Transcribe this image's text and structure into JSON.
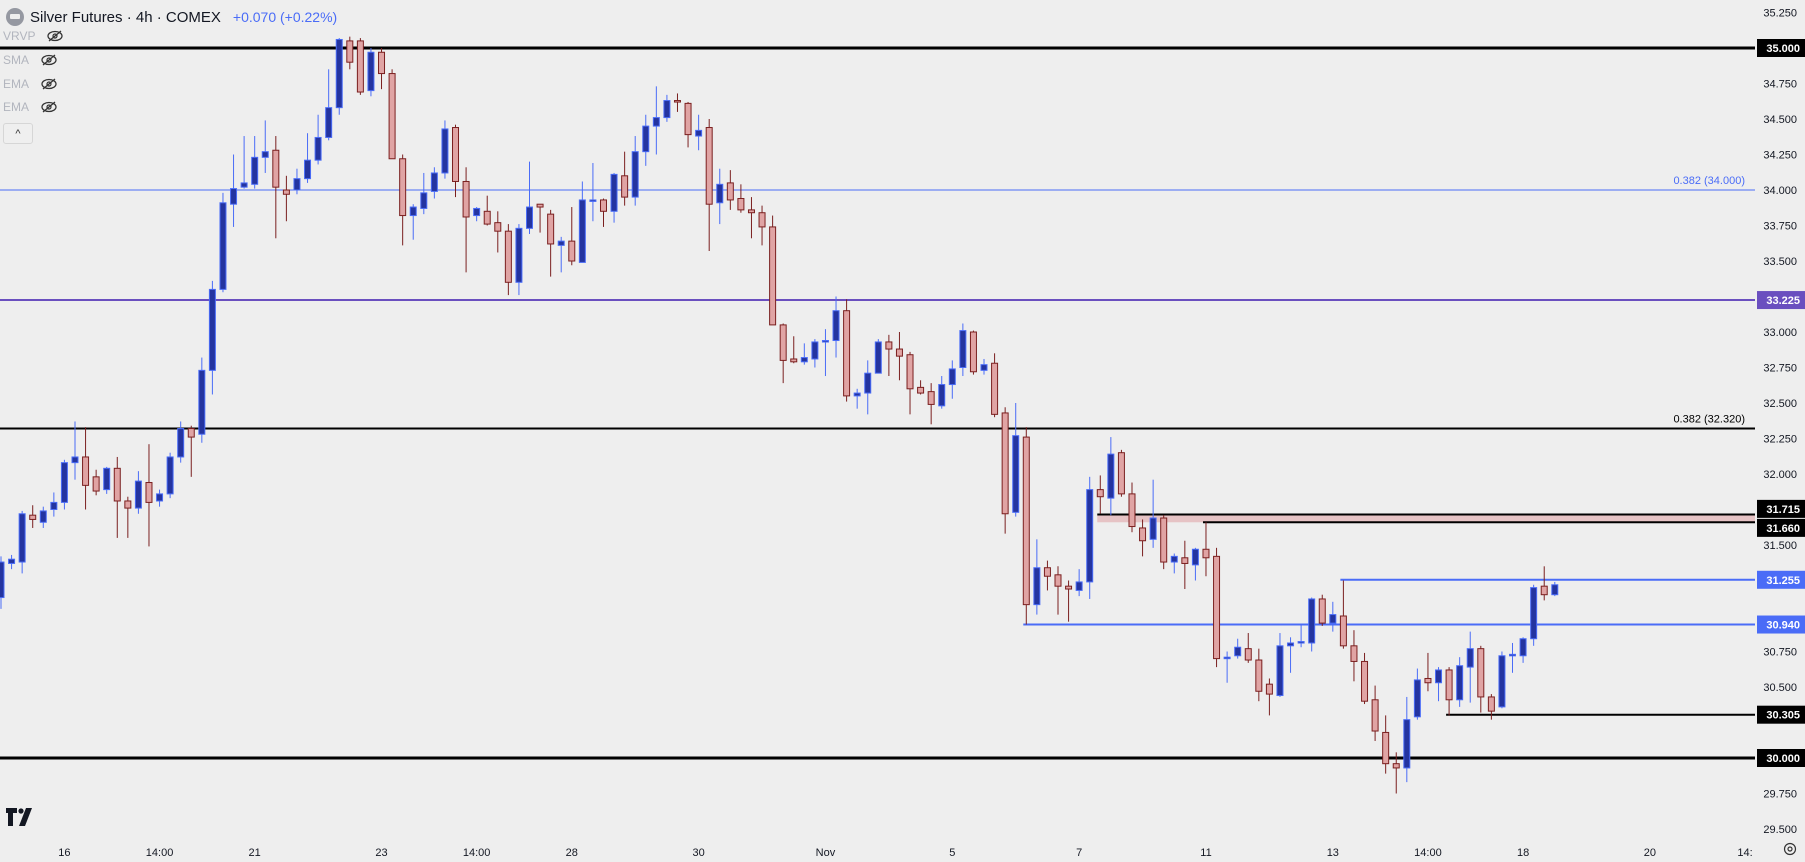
{
  "header": {
    "title": "Silver Futures · 4h · COMEX",
    "change": "+0.070 (+0.22%)"
  },
  "indicators": [
    {
      "label": "VRVP",
      "icon": "eye-off-icon"
    },
    {
      "label": "SMA",
      "icon": "eye-off-icon"
    },
    {
      "label": "EMA",
      "icon": "eye-off-icon"
    },
    {
      "label": "EMA",
      "icon": "eye-off-icon"
    }
  ],
  "collapse_label": "^",
  "colors": {
    "background": "#eeeeee",
    "up_body": "#2434a0",
    "up_border": "#4a6cf7",
    "down_body": "#e0a4a4",
    "down_border": "#7a1f1f",
    "blue_line": "#4a6cf7",
    "purple_line": "#6a4fbf",
    "black_line": "#000000",
    "zone_fill": "#e6c3c5"
  },
  "chart_data": {
    "type": "candlestick",
    "title": "Silver Futures · 4h · COMEX",
    "ylim": [
      29.34,
      35.34
    ],
    "y_ticks": [
      "35.250",
      "34.750",
      "34.500",
      "34.250",
      "34.000",
      "33.750",
      "33.500",
      "33.000",
      "32.750",
      "32.500",
      "32.250",
      "32.000",
      "31.500",
      "30.750",
      "30.500",
      "29.750",
      "29.500"
    ],
    "x_labels": [
      {
        "label": "16",
        "index": 6
      },
      {
        "label": "14:00",
        "index": 15
      },
      {
        "label": "21",
        "index": 24
      },
      {
        "label": "23",
        "index": 36
      },
      {
        "label": "14:00",
        "index": 45
      },
      {
        "label": "28",
        "index": 54
      },
      {
        "label": "30",
        "index": 66
      },
      {
        "label": "Nov",
        "index": 78
      },
      {
        "label": "5",
        "index": 90
      },
      {
        "label": "7",
        "index": 102
      },
      {
        "label": "11",
        "index": 114
      },
      {
        "label": "13",
        "index": 126
      },
      {
        "label": "14:00",
        "index": 135
      },
      {
        "label": "18",
        "index": 144
      },
      {
        "label": "20",
        "index": 156
      },
      {
        "label": "14:",
        "index": 165
      }
    ],
    "candles_ohlc": [
      [
        31.13,
        31.42,
        31.05,
        31.38
      ],
      [
        31.37,
        31.43,
        31.33,
        31.4
      ],
      [
        31.38,
        31.74,
        31.3,
        31.72
      ],
      [
        31.71,
        31.78,
        31.62,
        31.68
      ],
      [
        31.66,
        31.77,
        31.62,
        31.74
      ],
      [
        31.75,
        31.87,
        31.7,
        31.8
      ],
      [
        31.8,
        32.1,
        31.75,
        32.08
      ],
      [
        32.08,
        32.37,
        31.96,
        32.12
      ],
      [
        32.12,
        32.33,
        31.75,
        31.92
      ],
      [
        31.98,
        32.03,
        31.85,
        31.88
      ],
      [
        31.89,
        32.05,
        31.86,
        32.04
      ],
      [
        32.04,
        32.12,
        31.55,
        31.81
      ],
      [
        31.81,
        31.84,
        31.55,
        31.76
      ],
      [
        31.76,
        32.02,
        31.72,
        31.95
      ],
      [
        31.94,
        32.21,
        31.49,
        31.8
      ],
      [
        31.81,
        31.89,
        31.77,
        31.86
      ],
      [
        31.86,
        32.15,
        31.83,
        32.12
      ],
      [
        32.12,
        32.37,
        32.08,
        32.32
      ],
      [
        32.32,
        32.34,
        31.98,
        32.26
      ],
      [
        32.28,
        32.82,
        32.22,
        32.73
      ],
      [
        32.73,
        33.36,
        32.56,
        33.3
      ],
      [
        33.3,
        33.98,
        33.28,
        33.91
      ],
      [
        33.9,
        34.25,
        33.74,
        34.01
      ],
      [
        34.02,
        34.38,
        34.01,
        34.05
      ],
      [
        34.04,
        34.38,
        34.01,
        34.23
      ],
      [
        34.23,
        34.49,
        34.12,
        34.27
      ],
      [
        34.28,
        34.38,
        33.66,
        34.02
      ],
      [
        34.0,
        34.1,
        33.78,
        33.97
      ],
      [
        34.0,
        34.15,
        33.97,
        34.08
      ],
      [
        34.08,
        34.4,
        34.05,
        34.21
      ],
      [
        34.21,
        34.53,
        34.18,
        34.37
      ],
      [
        34.37,
        34.85,
        34.35,
        34.58
      ],
      [
        34.58,
        35.07,
        34.53,
        35.06
      ],
      [
        35.05,
        35.08,
        34.85,
        34.9
      ],
      [
        35.05,
        35.07,
        34.67,
        34.69
      ],
      [
        34.7,
        35.0,
        34.66,
        34.97
      ],
      [
        34.97,
        35.0,
        34.71,
        34.82
      ],
      [
        34.82,
        34.85,
        34.22,
        34.22
      ],
      [
        34.22,
        34.25,
        33.61,
        33.82
      ],
      [
        33.82,
        33.9,
        33.65,
        33.88
      ],
      [
        33.87,
        34.12,
        33.83,
        33.98
      ],
      [
        33.99,
        34.16,
        33.94,
        34.12
      ],
      [
        34.12,
        34.49,
        34.08,
        34.43
      ],
      [
        34.44,
        34.46,
        33.95,
        34.06
      ],
      [
        34.06,
        34.16,
        33.42,
        33.81
      ],
      [
        33.82,
        33.88,
        33.78,
        33.87
      ],
      [
        33.85,
        33.96,
        33.75,
        33.76
      ],
      [
        33.77,
        33.85,
        33.56,
        33.71
      ],
      [
        33.71,
        33.76,
        33.26,
        33.35
      ],
      [
        33.35,
        33.76,
        33.26,
        33.73
      ],
      [
        33.73,
        34.2,
        33.69,
        33.88
      ],
      [
        33.9,
        33.9,
        33.7,
        33.88
      ],
      [
        33.83,
        33.86,
        33.39,
        33.62
      ],
      [
        33.61,
        33.67,
        33.42,
        33.64
      ],
      [
        33.64,
        33.88,
        33.47,
        33.5
      ],
      [
        33.49,
        34.06,
        33.49,
        33.93
      ],
      [
        33.92,
        34.19,
        33.78,
        33.93
      ],
      [
        33.93,
        33.94,
        33.74,
        33.85
      ],
      [
        33.85,
        34.12,
        33.77,
        34.11
      ],
      [
        34.1,
        34.27,
        33.89,
        33.95
      ],
      [
        33.95,
        34.38,
        33.89,
        34.27
      ],
      [
        34.27,
        34.53,
        34.17,
        34.45
      ],
      [
        34.45,
        34.73,
        34.25,
        34.51
      ],
      [
        34.51,
        34.67,
        34.48,
        34.63
      ],
      [
        34.63,
        34.68,
        34.55,
        34.62
      ],
      [
        34.61,
        34.62,
        34.3,
        34.39
      ],
      [
        34.38,
        34.53,
        34.28,
        34.42
      ],
      [
        34.44,
        34.5,
        33.57,
        33.9
      ],
      [
        33.91,
        34.15,
        33.76,
        34.04
      ],
      [
        34.05,
        34.14,
        33.86,
        33.93
      ],
      [
        33.94,
        34.04,
        33.84,
        33.86
      ],
      [
        33.86,
        33.95,
        33.66,
        33.84
      ],
      [
        33.84,
        33.89,
        33.61,
        33.74
      ],
      [
        33.74,
        33.82,
        33.05,
        33.05
      ],
      [
        33.05,
        33.06,
        32.64,
        32.8
      ],
      [
        32.81,
        32.97,
        32.78,
        32.79
      ],
      [
        32.79,
        32.92,
        32.77,
        32.82
      ],
      [
        32.81,
        32.95,
        32.75,
        32.93
      ],
      [
        32.93,
        33.02,
        32.69,
        32.94
      ],
      [
        32.94,
        33.25,
        32.82,
        33.15
      ],
      [
        33.15,
        33.23,
        32.51,
        32.55
      ],
      [
        32.55,
        32.6,
        32.46,
        32.57
      ],
      [
        32.57,
        32.8,
        32.42,
        32.71
      ],
      [
        32.71,
        32.95,
        32.71,
        32.93
      ],
      [
        32.93,
        32.98,
        32.69,
        32.88
      ],
      [
        32.88,
        33.0,
        32.66,
        32.83
      ],
      [
        32.84,
        32.86,
        32.42,
        32.6
      ],
      [
        32.61,
        32.66,
        32.56,
        32.57
      ],
      [
        32.58,
        32.64,
        32.35,
        32.49
      ],
      [
        32.48,
        32.69,
        32.46,
        32.63
      ],
      [
        32.63,
        32.8,
        32.53,
        32.74
      ],
      [
        32.75,
        33.06,
        32.69,
        33.01
      ],
      [
        33.0,
        33.01,
        32.7,
        32.72
      ],
      [
        32.73,
        32.81,
        32.7,
        32.77
      ],
      [
        32.78,
        32.85,
        32.4,
        32.42
      ],
      [
        32.43,
        32.47,
        31.58,
        31.72
      ],
      [
        31.73,
        32.5,
        31.7,
        32.27
      ],
      [
        32.26,
        32.33,
        30.94,
        31.08
      ],
      [
        31.08,
        31.54,
        31.01,
        31.34
      ],
      [
        31.34,
        31.39,
        31.18,
        31.28
      ],
      [
        31.29,
        31.35,
        31.01,
        31.21
      ],
      [
        31.21,
        31.25,
        30.96,
        31.19
      ],
      [
        31.18,
        31.33,
        31.14,
        31.24
      ],
      [
        31.24,
        31.98,
        31.12,
        31.89
      ],
      [
        31.89,
        31.99,
        31.72,
        31.84
      ],
      [
        31.83,
        32.26,
        31.71,
        32.14
      ],
      [
        32.15,
        32.17,
        31.84,
        31.86
      ],
      [
        31.86,
        31.94,
        31.59,
        31.63
      ],
      [
        31.62,
        31.68,
        31.42,
        31.53
      ],
      [
        31.54,
        31.96,
        31.48,
        31.69
      ],
      [
        31.69,
        31.71,
        31.33,
        31.38
      ],
      [
        31.38,
        31.44,
        31.3,
        31.42
      ],
      [
        31.41,
        31.53,
        31.19,
        31.37
      ],
      [
        31.36,
        31.48,
        31.25,
        31.47
      ],
      [
        31.47,
        31.66,
        31.28,
        31.41
      ],
      [
        31.42,
        31.48,
        30.64,
        30.7
      ],
      [
        30.7,
        30.75,
        30.53,
        30.71
      ],
      [
        30.72,
        30.84,
        30.7,
        30.78
      ],
      [
        30.77,
        30.88,
        30.67,
        30.69
      ],
      [
        30.69,
        30.77,
        30.4,
        30.47
      ],
      [
        30.52,
        30.56,
        30.3,
        30.45
      ],
      [
        30.44,
        30.88,
        30.43,
        30.79
      ],
      [
        30.79,
        30.85,
        30.6,
        30.81
      ],
      [
        30.81,
        30.94,
        30.78,
        30.82
      ],
      [
        30.81,
        31.13,
        30.75,
        31.12
      ],
      [
        31.12,
        31.15,
        30.93,
        30.95
      ],
      [
        30.95,
        31.1,
        30.89,
        31.01
      ],
      [
        31.0,
        31.25,
        30.77,
        30.79
      ],
      [
        30.79,
        30.9,
        30.54,
        30.68
      ],
      [
        30.68,
        30.74,
        30.38,
        30.4
      ],
      [
        30.41,
        30.51,
        30.12,
        30.19
      ],
      [
        30.18,
        30.3,
        29.89,
        29.96
      ],
      [
        29.96,
        30.04,
        29.75,
        29.93
      ],
      [
        29.93,
        30.43,
        29.83,
        30.27
      ],
      [
        30.29,
        30.63,
        30.27,
        30.55
      ],
      [
        30.56,
        30.74,
        30.47,
        30.53
      ],
      [
        30.53,
        30.64,
        30.4,
        30.62
      ],
      [
        30.62,
        30.64,
        30.3,
        30.41
      ],
      [
        30.41,
        30.71,
        30.36,
        30.65
      ],
      [
        30.64,
        30.89,
        30.39,
        30.77
      ],
      [
        30.77,
        30.79,
        30.32,
        30.43
      ],
      [
        30.43,
        30.45,
        30.27,
        30.33
      ],
      [
        30.36,
        30.75,
        30.35,
        30.72
      ],
      [
        30.72,
        30.81,
        30.6,
        30.73
      ],
      [
        30.72,
        30.85,
        30.67,
        30.84
      ],
      [
        30.84,
        31.22,
        30.79,
        31.2
      ],
      [
        31.21,
        31.35,
        31.11,
        31.15
      ],
      [
        31.15,
        31.24,
        31.14,
        31.22
      ]
    ],
    "horizontal_lines": [
      {
        "price": 35.0,
        "label": "35.000",
        "style": "black-thick",
        "start_index": 0
      },
      {
        "price": 34.0,
        "label": "34.000",
        "style": "blue-thin",
        "start_index": 0,
        "annotation": "0.382 (34.000)",
        "show_axis_label": false
      },
      {
        "price": 33.225,
        "label": "33.225",
        "style": "purple",
        "start_index": 0
      },
      {
        "price": 32.32,
        "label": "32.320",
        "style": "black",
        "start_index": 0,
        "annotation": "0.382 (32.320)",
        "show_axis_label": false
      },
      {
        "price": 31.715,
        "label": "31.715",
        "style": "black",
        "start_index": 104
      },
      {
        "price": 31.66,
        "label": "31.660",
        "style": "black",
        "start_index": 114
      },
      {
        "price": 31.255,
        "label": "31.255",
        "style": "blue",
        "start_index": 127
      },
      {
        "price": 30.94,
        "label": "30.940",
        "style": "blue",
        "start_index": 97
      },
      {
        "price": 30.305,
        "label": "30.305",
        "style": "black",
        "start_index": 137
      },
      {
        "price": 30.0,
        "label": "30.000",
        "style": "black-thick",
        "start_index": 0
      }
    ],
    "zones": [
      {
        "from": 31.66,
        "to": 31.715,
        "start_index": 104
      }
    ]
  }
}
